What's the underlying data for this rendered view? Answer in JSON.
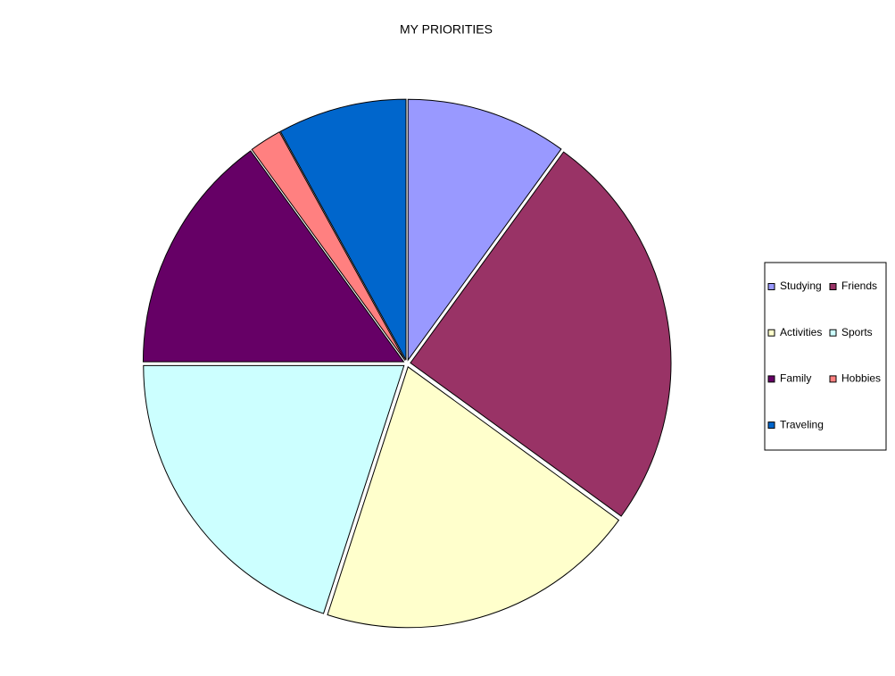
{
  "chart_data": {
    "type": "pie",
    "title": "MY PRIORITIES",
    "categories": [
      "Studying",
      "Friends",
      "Activities",
      "Sports",
      "Family",
      "Hobbies",
      "Traveling"
    ],
    "values": [
      10,
      25,
      20,
      20,
      15,
      2,
      8
    ],
    "colors": [
      "#9999ff",
      "#993366",
      "#ffffcc",
      "#ccffff",
      "#660066",
      "#ff8080",
      "#0066cc"
    ],
    "legend": "right"
  }
}
